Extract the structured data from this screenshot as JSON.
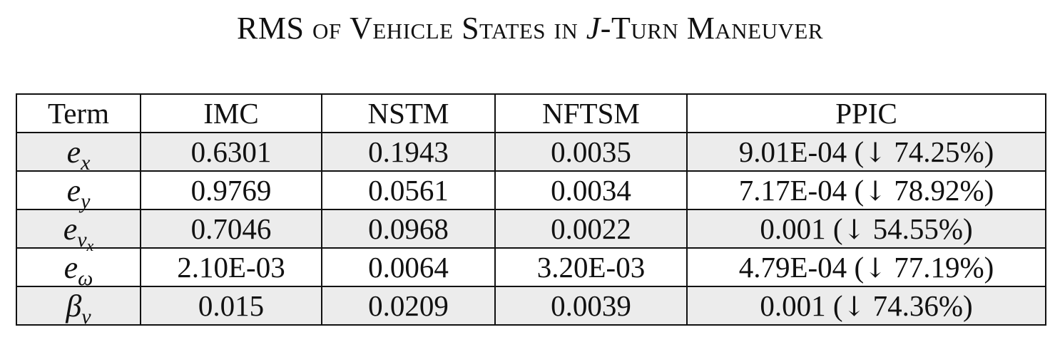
{
  "caption": {
    "part1": "RMS",
    "part2": "of",
    "part3": "Vehicle States in",
    "math_j": "J",
    "part4": "-Turn Maneuver"
  },
  "table": {
    "headers": [
      "Term",
      "IMC",
      "NSTM",
      "NFTSM",
      "PPIC"
    ],
    "rows": [
      {
        "term_base": "e",
        "term_sub": "x",
        "term_subsub": "",
        "imc": "0.6301",
        "nstm": "0.1943",
        "nftsm": "0.0035",
        "ppic_value": "9.01E-04",
        "ppic_pct": "74.25%"
      },
      {
        "term_base": "e",
        "term_sub": "y",
        "term_subsub": "",
        "imc": "0.9769",
        "nstm": "0.0561",
        "nftsm": "0.0034",
        "ppic_value": "7.17E-04",
        "ppic_pct": "78.92%"
      },
      {
        "term_base": "e",
        "term_sub": "v",
        "term_subsub": "x",
        "imc": "0.7046",
        "nstm": "0.0968",
        "nftsm": "0.0022",
        "ppic_value": "0.001",
        "ppic_pct": "54.55%"
      },
      {
        "term_base": "e",
        "term_sub": "ω",
        "term_subsub": "",
        "imc": "2.10E-03",
        "nstm": "0.0064",
        "nftsm": "3.20E-03",
        "ppic_value": "4.79E-04",
        "ppic_pct": "77.19%"
      },
      {
        "term_base": "β",
        "term_sub": "v",
        "term_subsub": "",
        "imc": "0.015",
        "nstm": "0.0209",
        "nftsm": "0.0039",
        "ppic_value": "0.001",
        "ppic_pct": "74.36%"
      }
    ],
    "arrow_glyph": "↓",
    "shading_color": "#ececec"
  }
}
